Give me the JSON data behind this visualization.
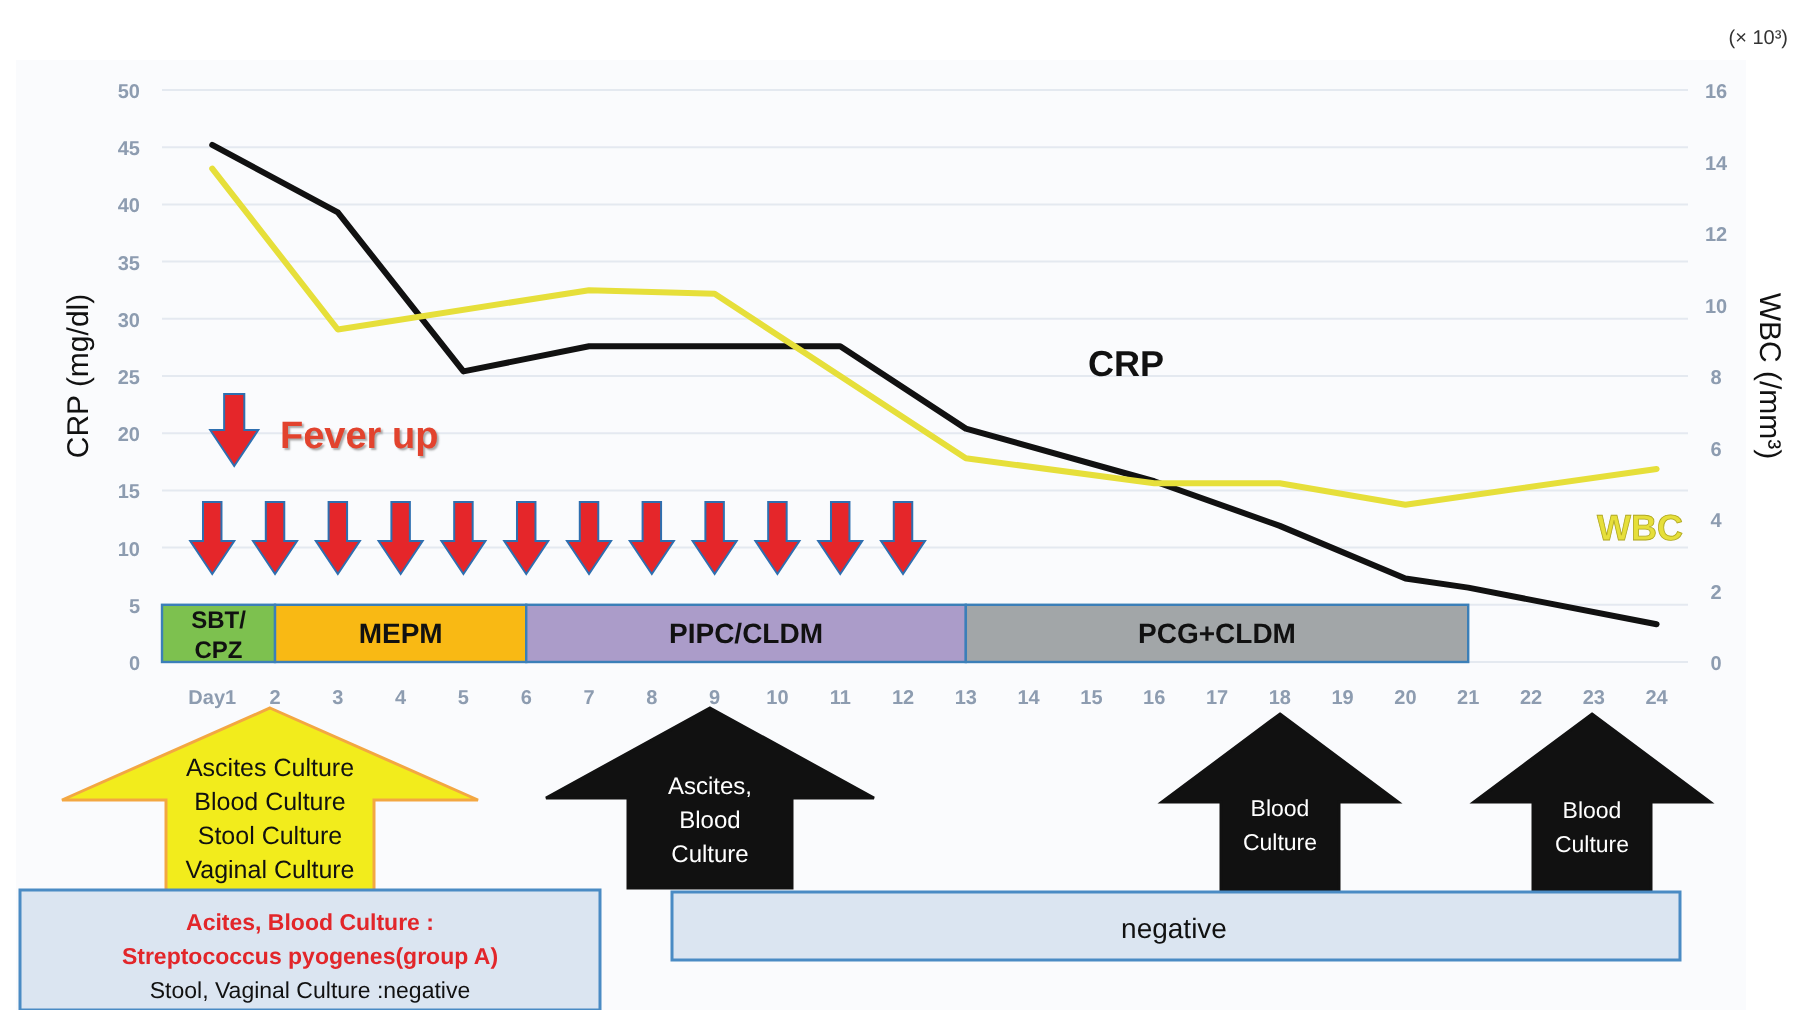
{
  "chart_data": {
    "type": "line",
    "ylabel": "CRP (mg/dl)",
    "y2label": "WBC (/mm³)",
    "xlim": [
      0.2,
      24.5
    ],
    "xticks": [
      {
        "value": 1,
        "label": "Day1"
      },
      2,
      3,
      4,
      5,
      6,
      7,
      8,
      9,
      10,
      11,
      12,
      13,
      14,
      15,
      16,
      17,
      18,
      19,
      20,
      21,
      22,
      23,
      24
    ],
    "ylim": [
      0,
      50
    ],
    "yticks": [
      0,
      5,
      10,
      15,
      20,
      25,
      30,
      35,
      40,
      45,
      50
    ],
    "y2lim": [
      0,
      16
    ],
    "y2ticks": [
      0,
      2,
      4,
      6,
      8,
      10,
      12,
      14,
      16
    ],
    "grid": "y",
    "line_style": "solid",
    "marker": "none",
    "series": [
      {
        "name": "CRP",
        "color": "#111111",
        "x": [
          1,
          3,
          5,
          7,
          11,
          13,
          16,
          18,
          20,
          21,
          24
        ],
        "values": [
          45.2,
          39.3,
          25.4,
          27.6,
          27.6,
          20.4,
          15.8,
          11.9,
          7.3,
          6.5,
          3.3
        ]
      },
      {
        "name": "WBC",
        "color": "#e6df3a",
        "axis": "y2",
        "x": [
          1,
          3,
          7,
          9,
          13,
          16,
          18,
          20,
          24
        ],
        "values": [
          13.8,
          9.3,
          10.4,
          10.3,
          5.7,
          5.0,
          5.0,
          4.4,
          5.4
        ]
      }
    ],
    "bands": [
      {
        "axis": "x",
        "from": 0.2,
        "to": 2,
        "label": "SBT/ CPZ",
        "color": "#7dc14f"
      },
      {
        "axis": "x",
        "from": 2,
        "to": 6,
        "label": "MEPM",
        "color": "#f9b914"
      },
      {
        "axis": "x",
        "from": 6,
        "to": 13,
        "label": "PIPC/CLDM",
        "color": "#ab9cc9"
      },
      {
        "axis": "x",
        "from": 13,
        "to": 21,
        "label": "PCG+CLDM",
        "color": "#a2a6a8"
      }
    ],
    "annotations": [
      "(× 10³)",
      "Fever up",
      "Ascites  Culture\nBlood Culture\nStool Culture\nVaginal Culture",
      "Ascites,\nBlood\nCulture",
      "Blood\nCulture",
      "Blood\nCulture",
      "Acites, Blood Culture :\nStreptococcus pyogenes(group A)\nStool, Vaginal Culture :negative",
      "negative"
    ]
  }
}
